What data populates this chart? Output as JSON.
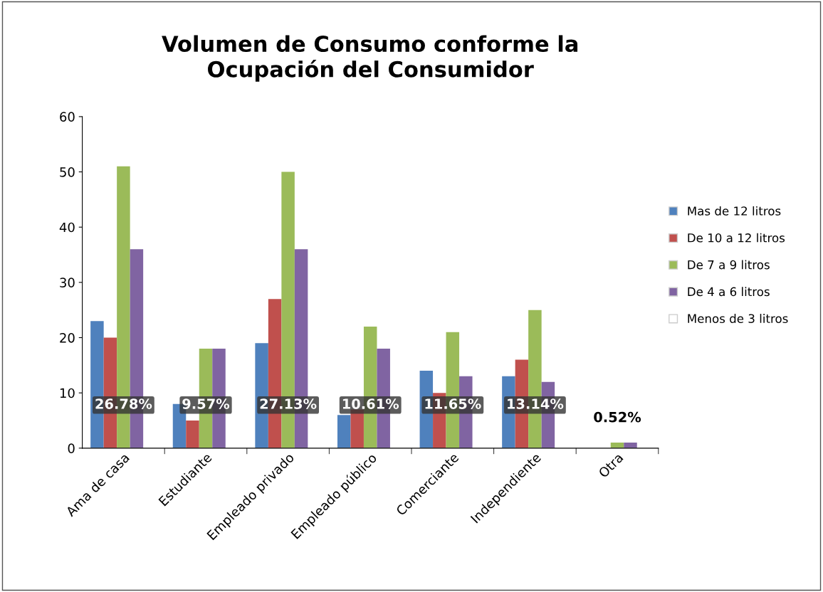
{
  "chart_data": {
    "type": "bar",
    "title": "Volumen de Consumo conforme la\nOcupación del Consumidor",
    "categories": [
      "Ama de casa",
      "Estudiante",
      "Empleado privado",
      "Empleado público",
      "Comerciante",
      "Independiente",
      "Otra"
    ],
    "series": [
      {
        "name": "Mas de 12 litros",
        "color": "#4f81bd",
        "values": [
          23,
          8,
          19,
          6,
          14,
          13,
          0
        ]
      },
      {
        "name": "De 10 a 12 litros",
        "color": "#c0504d",
        "values": [
          20,
          5,
          27,
          7,
          10,
          16,
          0
        ]
      },
      {
        "name": "De 7 a 9 litros",
        "color": "#9bbb59",
        "values": [
          51,
          18,
          50,
          22,
          21,
          25,
          1
        ]
      },
      {
        "name": "De 4 a 6 litros",
        "color": "#8064a2",
        "values": [
          36,
          18,
          36,
          18,
          13,
          12,
          1
        ]
      },
      {
        "name": "Menos de 3 litros",
        "color": "#ffffff",
        "values": [
          0,
          0,
          0,
          0,
          0,
          0,
          0
        ]
      }
    ],
    "ylim": [
      0,
      60
    ],
    "yticks": [
      0,
      10,
      20,
      30,
      40,
      50,
      60
    ],
    "grid": false,
    "legend": "right",
    "annotations": [
      "26.78%",
      "9.57%",
      "27.13%",
      "10.61%",
      "11.65%",
      "13.14%",
      "0.52%"
    ]
  }
}
